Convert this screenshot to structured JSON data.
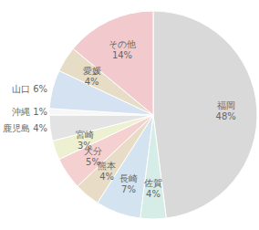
{
  "chart_data": {
    "type": "pie",
    "categories": [
      "福岡",
      "佐賀",
      "長崎",
      "熊本",
      "大分",
      "宮崎",
      "鹿児島",
      "沖縄",
      "山口",
      "愛媛",
      "その他"
    ],
    "values": [
      48,
      4,
      7,
      4,
      5,
      3,
      4,
      1,
      6,
      4,
      14
    ],
    "value_labels": [
      "48%",
      "4%",
      "7%",
      "4%",
      "5%",
      "3%",
      "4%",
      "1%",
      "6%",
      "4%",
      "14%"
    ],
    "colors": [
      "#d9d9d9",
      "#d6ece6",
      "#d4e3f0",
      "#e8dcc6",
      "#f5d0d0",
      "#eef0d2",
      "#e3e3e3",
      "#f7f7f7",
      "#d5e2f2",
      "#e7dcc5",
      "#f2cacd"
    ],
    "data_labels": true
  }
}
